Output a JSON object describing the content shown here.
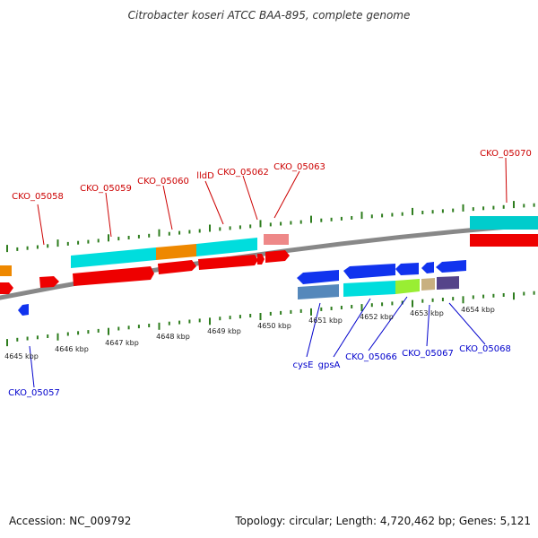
{
  "title": "Citrobacter koseri ATCC BAA-895, complete genome",
  "footer": {
    "accession": "Accession: NC_009792",
    "topology": "Topology: circular; Length: 4,720,462 bp; Genes: 5,121"
  },
  "colors": {
    "forward_label": "#cc0000",
    "reverse_label": "#0000cc",
    "tick": "#2e7d1e",
    "backbone": "#888888"
  },
  "scale_labels": [
    "4645 kbp",
    "4646 kbp",
    "4647 kbp",
    "4648 kbp",
    "4649 kbp",
    "4650 kbp",
    "4651 kbp",
    "4652 kbp",
    "4653 kbp",
    "4654 kbp"
  ],
  "forward_genes": [
    "CKO_05058",
    "CKO_05059",
    "CKO_05060",
    "lldD",
    "CKO_05062",
    "CKO_05063",
    "CKO_05070"
  ],
  "reverse_genes": [
    "CKO_05057",
    "cysE",
    "gpsA",
    "CKO_05066",
    "CKO_05067",
    "CKO_05068"
  ]
}
